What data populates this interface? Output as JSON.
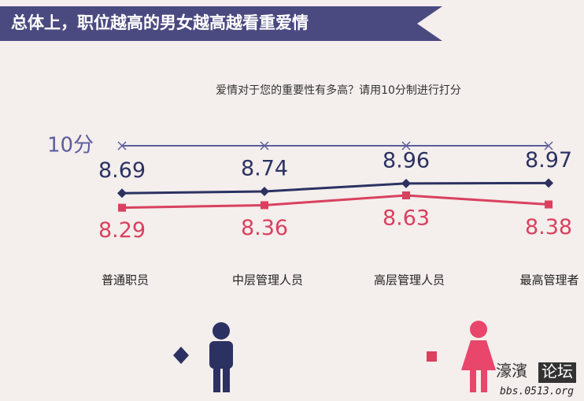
{
  "chart_data": {
    "type": "line",
    "title": "总体上，职位越高的男女越高越看重爱情",
    "subtitle": "爱情对于您的重要性有多高？请用10分制进行打分",
    "categories": [
      "普通职员",
      "中层管理人员",
      "高层管理人员",
      "最高管理者"
    ],
    "series": [
      {
        "color": "#2b3262",
        "marker": "diamond",
        "values": [
          8.69,
          8.74,
          8.96,
          8.97
        ]
      },
      {
        "color": "#d9415f",
        "marker": "square",
        "values": [
          8.29,
          8.36,
          8.63,
          8.38
        ]
      }
    ],
    "reference": {
      "value": 10,
      "label": "10分",
      "color": "#5c5d9e"
    },
    "ylim": [
      8,
      10
    ]
  },
  "watermark": {
    "name": "濠濱",
    "tag": "论坛",
    "url": "bbs.0513.org"
  }
}
